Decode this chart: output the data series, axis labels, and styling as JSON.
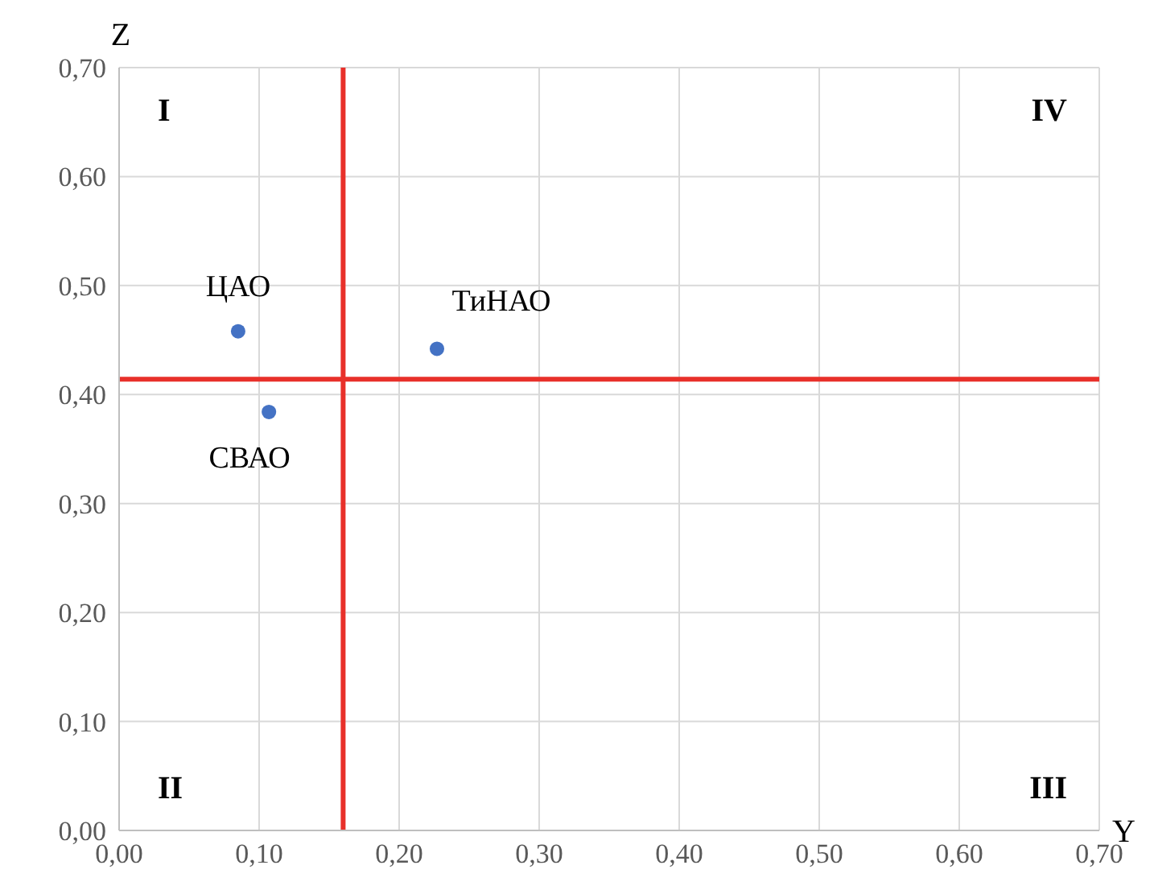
{
  "chart_data": {
    "type": "scatter",
    "xlabel": "Y",
    "ylabel": "Z",
    "series": [
      {
        "name": "ЦАО",
        "color": "#4472c4",
        "x": [
          0.085
        ],
        "values": [
          0.458
        ]
      },
      {
        "name": "СВАО",
        "color": "#4472c4",
        "x": [
          0.107
        ],
        "values": [
          0.384
        ]
      },
      {
        "name": "ТиНАО",
        "color": "#4472c4",
        "x": [
          0.227
        ],
        "values": [
          0.442
        ]
      }
    ],
    "xlim": [
      0,
      0.7
    ],
    "ylim": [
      0,
      0.7
    ],
    "xticks": [
      {
        "value": 0,
        "label": "0,00"
      },
      {
        "value": 0.1,
        "label": "0,10"
      },
      {
        "value": 0.2,
        "label": "0,20"
      },
      {
        "value": 0.3,
        "label": "0,30"
      },
      {
        "value": 0.4,
        "label": "0,40"
      },
      {
        "value": 0.5,
        "label": "0,50"
      },
      {
        "value": 0.6,
        "label": "0,60"
      },
      {
        "value": 0.7,
        "label": "0,70"
      }
    ],
    "yticks": [
      {
        "value": 0,
        "label": "0,00"
      },
      {
        "value": 0.1,
        "label": "0,10"
      },
      {
        "value": 0.2,
        "label": "0,20"
      },
      {
        "value": 0.3,
        "label": "0,30"
      },
      {
        "value": 0.4,
        "label": "0,40"
      },
      {
        "value": 0.5,
        "label": "0,50"
      },
      {
        "value": 0.6,
        "label": "0,60"
      },
      {
        "value": 0.7,
        "label": "0,70"
      }
    ],
    "grid": true,
    "marker": "circle",
    "legend": false,
    "ref_lines": [
      {
        "axis": "x",
        "value": 0.16,
        "color": "#e8302a"
      },
      {
        "axis": "y",
        "value": 0.414,
        "color": "#e8302a"
      }
    ],
    "annotations": [
      "I",
      "IV",
      "II",
      "III"
    ]
  }
}
